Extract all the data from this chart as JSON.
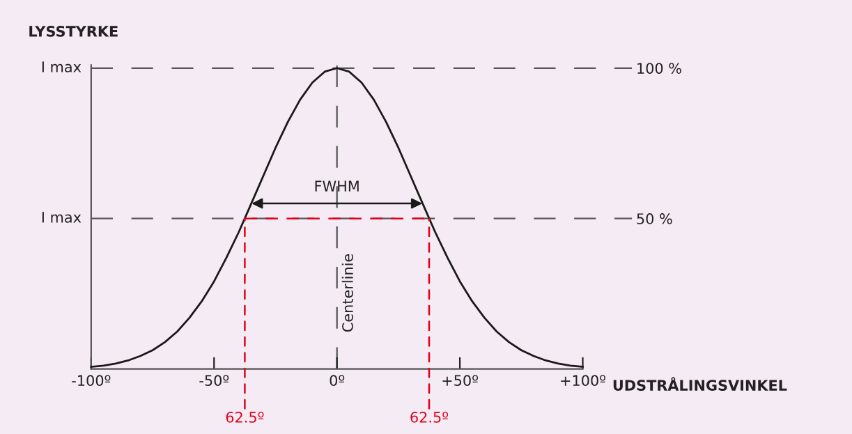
{
  "chart_data": {
    "type": "line",
    "title": "LYSSTYRKE",
    "xlabel": "UDSTRÅLINGSVINKEL",
    "x": [
      -100,
      -95,
      -90,
      -85,
      -80,
      -75,
      -70,
      -65,
      -60,
      -55,
      -50,
      -45,
      -40,
      -35,
      -30,
      -25,
      -20,
      -15,
      -10,
      -5,
      0,
      5,
      10,
      15,
      20,
      25,
      30,
      35,
      40,
      45,
      50,
      55,
      60,
      65,
      70,
      75,
      80,
      85,
      90,
      95,
      100
    ],
    "series": [
      {
        "color": "#1a1a1a",
        "values": [
          0.7,
          1.1,
          1.8,
          2.8,
          4.3,
          6.2,
          8.9,
          12.4,
          17.0,
          22.5,
          29.1,
          36.9,
          45.4,
          54.7,
          64.1,
          73.5,
          82.1,
          89.5,
          95.2,
          98.8,
          100,
          98.8,
          95.2,
          89.5,
          82.1,
          73.5,
          64.1,
          54.7,
          45.4,
          36.9,
          29.1,
          22.5,
          17.0,
          12.4,
          8.9,
          6.2,
          4.3,
          2.8,
          1.8,
          1.1,
          0.7
        ]
      },
      {
        "type": "line",
        "color": "#e2001a",
        "line_style": "dashed",
        "x": [
          -37.5,
          37.5
        ],
        "values": [
          50,
          50
        ]
      }
    ],
    "xlim": [
      -100,
      100
    ],
    "ylim": [
      0,
      101
    ],
    "xticks": [
      {
        "value": -100,
        "label": "-100º"
      },
      {
        "value": -50,
        "label": "-50º"
      },
      {
        "value": 0,
        "label": "0º"
      },
      {
        "value": 50,
        "label": "+50º"
      },
      {
        "value": 100,
        "label": "+100º"
      }
    ],
    "yticks": [
      {
        "value": 50,
        "label": "50 %"
      },
      {
        "value": 100,
        "label": "100 %"
      }
    ],
    "ref_lines": [
      {
        "axis": "y",
        "value": 100,
        "color": "#555555",
        "line_style": "dashed"
      },
      {
        "axis": "y",
        "value": 50,
        "color": "#555555",
        "line_style": "dashed"
      },
      {
        "axis": "x",
        "value": 0,
        "label": "Centerlinie",
        "color": "#555555",
        "line_style": "dashed"
      }
    ],
    "annotations": [
      {
        "text": "FWHM",
        "x": 0,
        "y": 55
      },
      {
        "text": "I max",
        "x": -100,
        "y": 100
      },
      {
        "text": "I max",
        "x": -100,
        "y": 50
      },
      {
        "text": "62.5º",
        "x": -37.5,
        "y": 50
      },
      {
        "text": "62.5º",
        "x": 37.5,
        "y": 50
      }
    ],
    "grid": false,
    "legend": false,
    "marker": "none"
  }
}
